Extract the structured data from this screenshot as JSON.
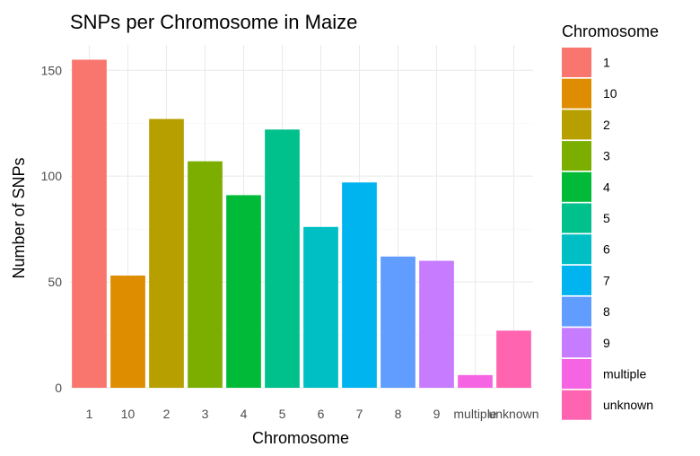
{
  "chart_data": {
    "type": "bar",
    "title": "SNPs per Chromosome in Maize",
    "xlabel": "Chromosome",
    "ylabel": "Number of SNPs",
    "categories": [
      "1",
      "10",
      "2",
      "3",
      "4",
      "5",
      "6",
      "7",
      "8",
      "9",
      "multiple",
      "unknown"
    ],
    "values": [
      155,
      53,
      127,
      107,
      91,
      122,
      76,
      97,
      62,
      60,
      6,
      27
    ],
    "colors": [
      "#F8766D",
      "#DE8C00",
      "#B79F00",
      "#7CAE00",
      "#00BA38",
      "#00C08B",
      "#00BFC4",
      "#00B4F0",
      "#619CFF",
      "#C77CFF",
      "#F564E3",
      "#FF64B0"
    ],
    "ylim": [
      0,
      162
    ],
    "yticks": [
      0,
      50,
      100,
      150
    ],
    "grid": true,
    "legend": {
      "title": "Chromosome",
      "position": "right",
      "entries": [
        "1",
        "10",
        "2",
        "3",
        "4",
        "5",
        "6",
        "7",
        "8",
        "9",
        "multiple",
        "unknown"
      ]
    }
  }
}
